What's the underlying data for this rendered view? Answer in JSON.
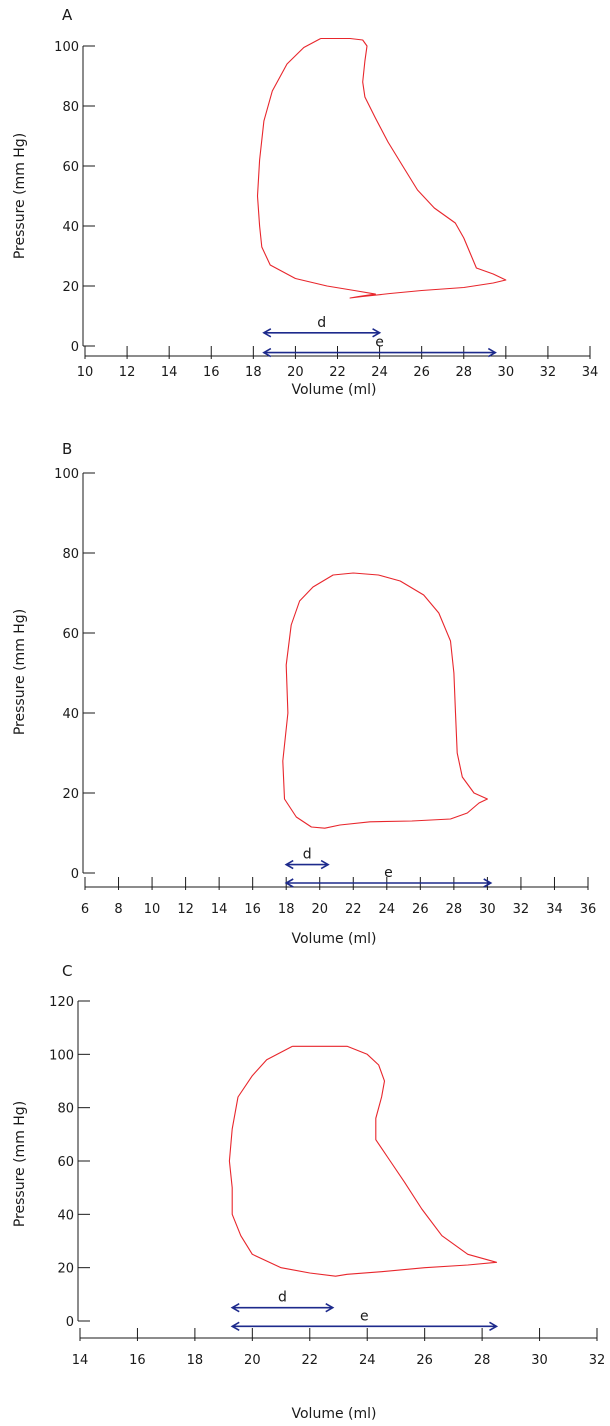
{
  "chart_data": [
    {
      "type": "line",
      "panel_label": "A",
      "xlabel": "Volume (ml)",
      "ylabel": "Pressure (mm Hg)",
      "xlim": [
        10,
        34
      ],
      "ylim": [
        0,
        100
      ],
      "xticks": [
        10,
        12,
        14,
        16,
        18,
        20,
        22,
        24,
        26,
        28,
        30,
        32,
        34
      ],
      "yticks": [
        0,
        20,
        40,
        60,
        80,
        100
      ],
      "series": [
        {
          "color": "#e8262c",
          "points": [
            [
              21.2,
              102.5
            ],
            [
              22.6,
              102.5
            ],
            [
              23.2,
              102.0
            ],
            [
              23.4,
              100.0
            ],
            [
              23.3,
              95.0
            ],
            [
              23.2,
              88.0
            ],
            [
              23.3,
              83.0
            ],
            [
              23.8,
              76.0
            ],
            [
              24.4,
              68.0
            ],
            [
              25.1,
              60.0
            ],
            [
              25.8,
              52.0
            ],
            [
              26.6,
              46.0
            ],
            [
              27.6,
              41.0
            ],
            [
              28.0,
              36.0
            ],
            [
              28.3,
              31.0
            ],
            [
              28.6,
              26.0
            ],
            [
              29.4,
              24.0
            ],
            [
              30.0,
              22.0
            ],
            [
              29.4,
              21.0
            ],
            [
              28.0,
              19.5
            ],
            [
              26.0,
              18.5
            ],
            [
              24.5,
              17.5
            ],
            [
              23.2,
              16.5
            ],
            [
              22.6,
              16.0
            ],
            [
              23.0,
              16.5
            ],
            [
              23.8,
              17.3
            ],
            [
              22.8,
              18.5
            ],
            [
              21.5,
              20.0
            ],
            [
              20.0,
              22.5
            ],
            [
              18.8,
              27.0
            ],
            [
              18.4,
              33.0
            ],
            [
              18.3,
              40.0
            ],
            [
              18.2,
              50.0
            ],
            [
              18.3,
              62.0
            ],
            [
              18.5,
              75.0
            ],
            [
              18.9,
              85.0
            ],
            [
              19.6,
              94.0
            ],
            [
              20.4,
              99.5
            ],
            [
              21.2,
              102.5
            ]
          ]
        }
      ],
      "annotations": [
        {
          "label": "d",
          "from": 18.5,
          "to": 24.0,
          "y": 4.4
        },
        {
          "label": "e",
          "from": 18.5,
          "to": 29.5,
          "y": -2.2
        }
      ]
    },
    {
      "type": "line",
      "panel_label": "B",
      "xlabel": "Volume (ml)",
      "ylabel": "Pressure (mm Hg)",
      "xlim": [
        6,
        36
      ],
      "ylim": [
        0,
        100
      ],
      "xticks": [
        6,
        8,
        10,
        12,
        14,
        16,
        18,
        20,
        22,
        24,
        26,
        28,
        30,
        32,
        34,
        36
      ],
      "yticks": [
        0,
        20,
        40,
        60,
        80,
        100
      ],
      "series": [
        {
          "color": "#e8262c",
          "points": [
            [
              22.0,
              75.0
            ],
            [
              23.5,
              74.5
            ],
            [
              24.8,
              73.0
            ],
            [
              26.2,
              69.5
            ],
            [
              27.1,
              65.0
            ],
            [
              27.8,
              58.0
            ],
            [
              28.0,
              50.0
            ],
            [
              28.1,
              40.0
            ],
            [
              28.2,
              30.0
            ],
            [
              28.5,
              24.0
            ],
            [
              29.2,
              20.0
            ],
            [
              30.0,
              18.5
            ],
            [
              29.5,
              17.5
            ],
            [
              28.8,
              15.0
            ],
            [
              27.8,
              13.5
            ],
            [
              25.5,
              13.0
            ],
            [
              23.0,
              12.8
            ],
            [
              21.2,
              12.0
            ],
            [
              20.3,
              11.2
            ],
            [
              19.5,
              11.5
            ],
            [
              18.6,
              14.0
            ],
            [
              17.9,
              18.5
            ],
            [
              17.8,
              28.0
            ],
            [
              18.1,
              40.0
            ],
            [
              18.0,
              52.0
            ],
            [
              18.3,
              62.0
            ],
            [
              18.8,
              68.0
            ],
            [
              19.6,
              71.5
            ],
            [
              20.8,
              74.5
            ],
            [
              22.0,
              75.0
            ]
          ]
        }
      ],
      "annotations": [
        {
          "label": "d",
          "from": 18.0,
          "to": 20.5,
          "y": 2.1
        },
        {
          "label": "e",
          "from": 18.0,
          "to": 30.2,
          "y": -2.5
        }
      ]
    },
    {
      "type": "line",
      "panel_label": "C",
      "xlabel": "Volume (ml)",
      "ylabel": "Pressure (mm Hg)",
      "xlim": [
        14,
        32
      ],
      "ylim": [
        0,
        120
      ],
      "xticks": [
        14,
        16,
        18,
        20,
        22,
        24,
        26,
        28,
        30,
        32
      ],
      "yticks": [
        0,
        20,
        40,
        60,
        80,
        100,
        120
      ],
      "series": [
        {
          "color": "#e8262c",
          "points": [
            [
              21.4,
              103.0
            ],
            [
              23.3,
              103.0
            ],
            [
              24.0,
              100.0
            ],
            [
              24.4,
              96.0
            ],
            [
              24.6,
              90.0
            ],
            [
              24.5,
              84.0
            ],
            [
              24.3,
              76.0
            ],
            [
              24.3,
              68.0
            ],
            [
              24.8,
              60.0
            ],
            [
              25.3,
              52.0
            ],
            [
              25.9,
              42.0
            ],
            [
              26.6,
              32.0
            ],
            [
              27.5,
              25.0
            ],
            [
              28.5,
              22.0
            ],
            [
              27.5,
              21.0
            ],
            [
              26.0,
              20.0
            ],
            [
              24.5,
              18.5
            ],
            [
              23.3,
              17.5
            ],
            [
              22.9,
              16.8
            ],
            [
              22.0,
              18.0
            ],
            [
              21.0,
              20.0
            ],
            [
              20.0,
              25.0
            ],
            [
              19.6,
              32.0
            ],
            [
              19.3,
              40.0
            ],
            [
              19.3,
              50.0
            ],
            [
              19.2,
              60.0
            ],
            [
              19.3,
              72.0
            ],
            [
              19.5,
              84.0
            ],
            [
              20.0,
              92.0
            ],
            [
              20.5,
              98.0
            ],
            [
              21.4,
              103.0
            ]
          ]
        }
      ],
      "annotations": [
        {
          "label": "d",
          "from": 19.3,
          "to": 22.8,
          "y": 5.0
        },
        {
          "label": "e",
          "from": 19.3,
          "to": 28.5,
          "y": -2.0
        }
      ]
    }
  ]
}
